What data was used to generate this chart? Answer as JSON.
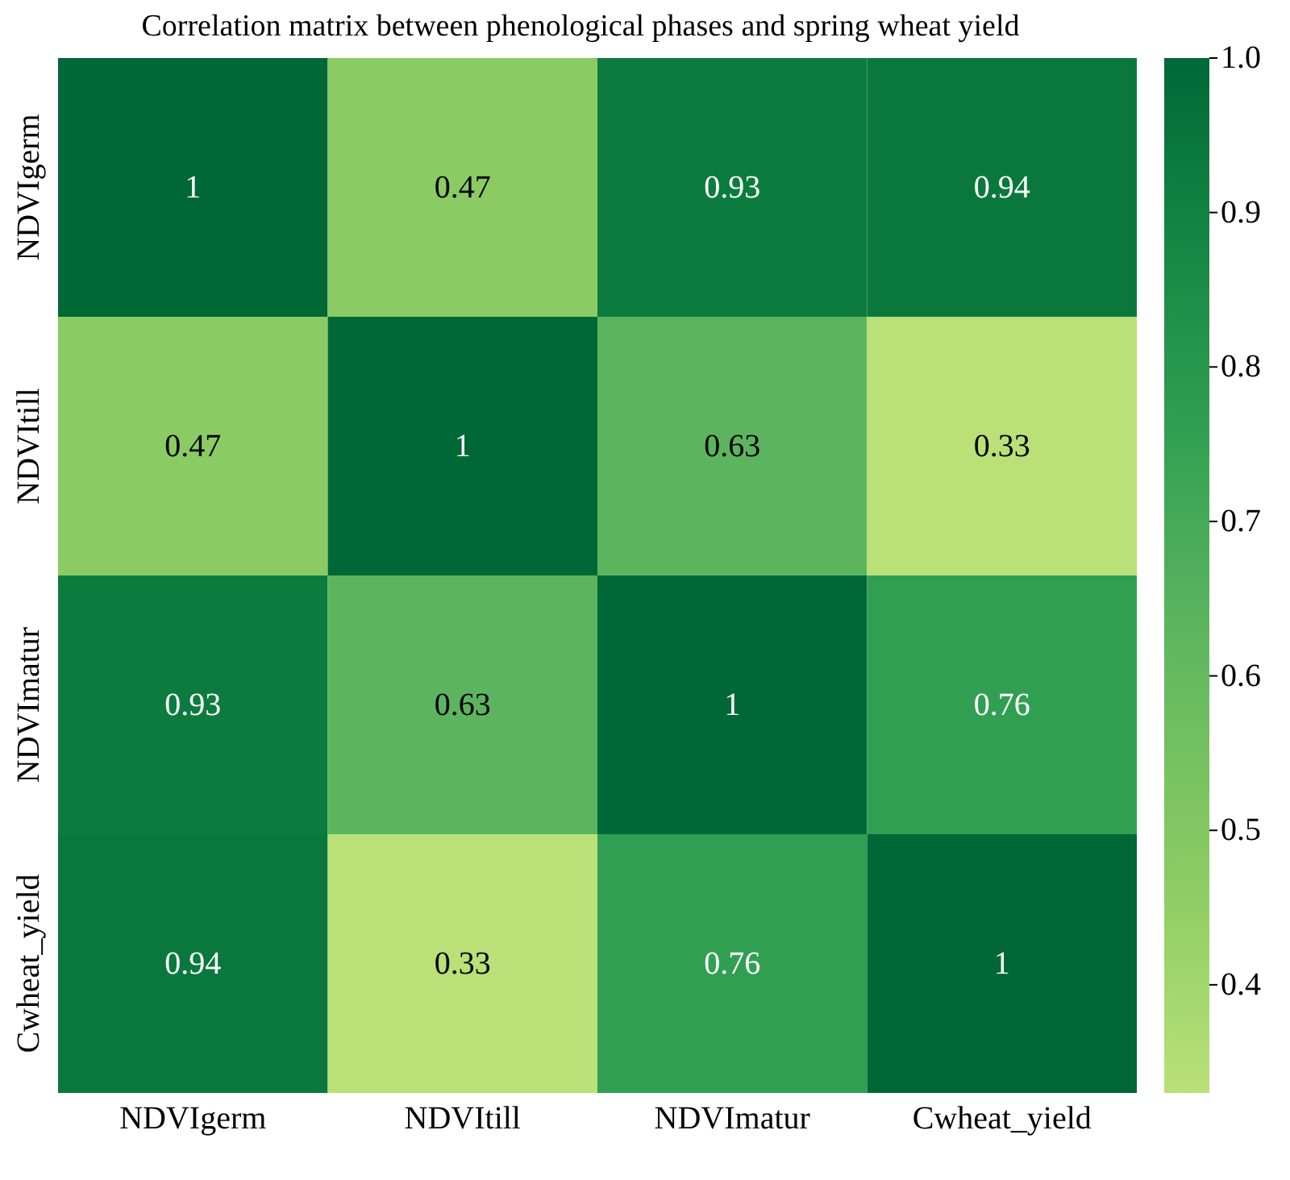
{
  "chart_data": {
    "type": "heatmap",
    "title": "Correlation matrix between phenological phases and spring wheat yield",
    "categories": [
      "NDVIgerm",
      "NDVItill",
      "NDVImatur",
      "Cwheat_yield"
    ],
    "y_categories": [
      "NDVIgerm",
      "NDVItill",
      "NDVImatur",
      "Cwheat_yield"
    ],
    "cells": [
      [
        1,
        0.47,
        0.93,
        0.94
      ],
      [
        0.47,
        1,
        0.63,
        0.33
      ],
      [
        0.93,
        0.63,
        1,
        0.76
      ],
      [
        0.94,
        0.33,
        0.76,
        1
      ]
    ],
    "data_labels": true,
    "clim": [
      0.33,
      1.0
    ],
    "cticks": [
      {
        "value": 0.4,
        "label": "0.4"
      },
      {
        "value": 0.5,
        "label": "0.5"
      },
      {
        "value": 0.6,
        "label": "0.6"
      },
      {
        "value": 0.7,
        "label": "0.7"
      },
      {
        "value": 0.8,
        "label": "0.8"
      },
      {
        "value": 0.9,
        "label": "0.9"
      },
      {
        "value": 1.0,
        "label": "1.0"
      }
    ]
  }
}
